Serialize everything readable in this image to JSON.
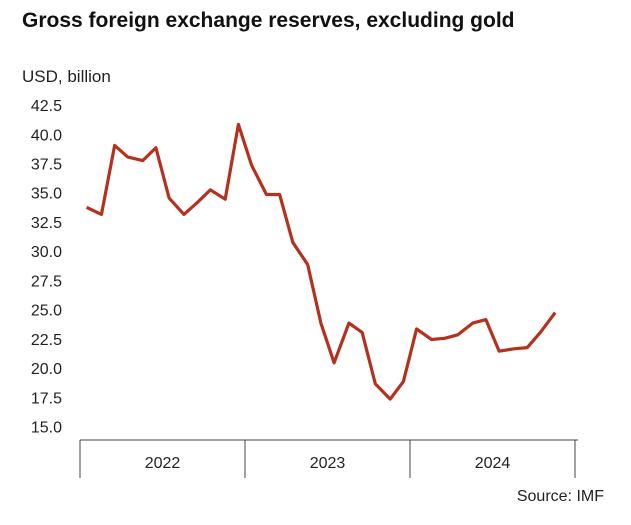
{
  "chart_data": {
    "type": "line",
    "title": "Gross foreign exchange reserves, excluding gold",
    "y_label": "USD, billion",
    "source": "Source: IMF",
    "x": [
      2022.04,
      2022.13,
      2022.21,
      2022.29,
      2022.38,
      2022.46,
      2022.54,
      2022.63,
      2022.71,
      2022.79,
      2022.88,
      2022.96,
      2023.04,
      2023.13,
      2023.21,
      2023.29,
      2023.38,
      2023.46,
      2023.54,
      2023.63,
      2023.71,
      2023.79,
      2023.88,
      2023.96,
      2024.04,
      2024.13,
      2024.21,
      2024.29,
      2024.38,
      2024.46,
      2024.54,
      2024.63,
      2024.71,
      2024.79,
      2024.88
    ],
    "series": [
      {
        "color": "#b5311e",
        "values": [
          33.9,
          33.3,
          39.2,
          38.2,
          37.9,
          39.0,
          34.7,
          33.3,
          34.3,
          35.4,
          34.6,
          41.0,
          37.5,
          35.0,
          35.0,
          30.9,
          29.0,
          24.0,
          20.6,
          24.0,
          23.2,
          18.8,
          17.5,
          19.0,
          23.5,
          22.6,
          22.7,
          23.0,
          24.0,
          24.3,
          21.6,
          21.8,
          21.9,
          23.2,
          24.9
        ]
      }
    ],
    "xlim": [
      2022,
      2025
    ],
    "xticks": [
      {
        "value": 2022.5,
        "label": "2022"
      },
      {
        "value": 2023.5,
        "label": "2023"
      },
      {
        "value": 2024.5,
        "label": "2024"
      }
    ],
    "xdividers": [
      2022,
      2023,
      2024,
      2025
    ],
    "ylim": [
      14,
      43
    ],
    "yticks": [
      {
        "value": 15,
        "label": "15.0"
      },
      {
        "value": 17.5,
        "label": "17.5"
      },
      {
        "value": 20,
        "label": "20.0"
      },
      {
        "value": 22.5,
        "label": "22.5"
      },
      {
        "value": 25,
        "label": "25.0"
      },
      {
        "value": 27.5,
        "label": "27.5"
      },
      {
        "value": 30,
        "label": "30.0"
      },
      {
        "value": 32.5,
        "label": "32.5"
      },
      {
        "value": 35,
        "label": "35.0"
      },
      {
        "value": 37.5,
        "label": "37.5"
      },
      {
        "value": 40,
        "label": "40.0"
      },
      {
        "value": 42.5,
        "label": "42.5"
      }
    ],
    "grid": false
  }
}
